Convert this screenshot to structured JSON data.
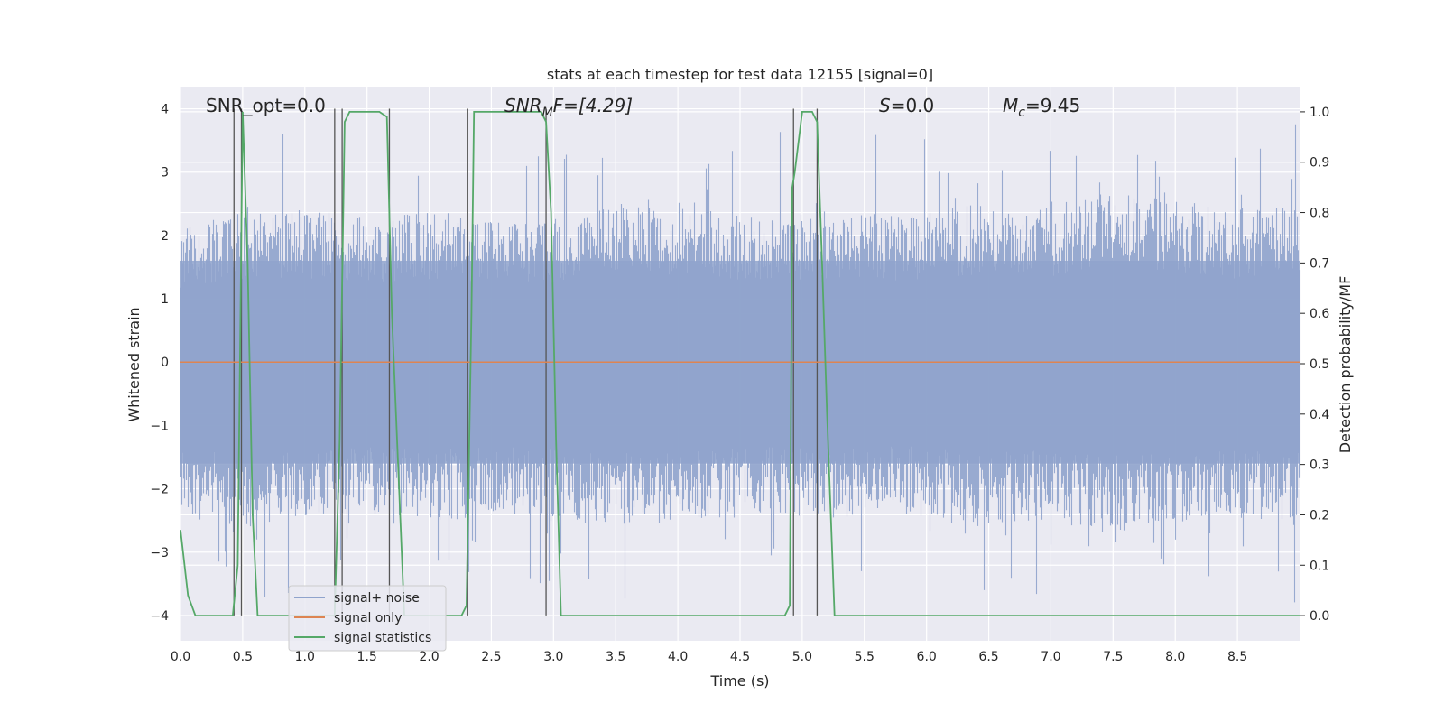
{
  "chart_data": {
    "type": "line",
    "title": "stats at each timestep for test data 12155 [signal=0]",
    "xlabel": "Time (s)",
    "ylabel": "Whitened strain",
    "ylabel_right": "Detection probability/MF",
    "xlim": [
      0,
      9
    ],
    "ylim": [
      -4.4,
      4.35
    ],
    "ylim_right": [
      -0.05,
      1.05
    ],
    "x_ticks": [
      0.0,
      0.5,
      1.0,
      1.5,
      2.0,
      2.5,
      3.0,
      3.5,
      4.0,
      4.5,
      5.0,
      5.5,
      6.0,
      6.5,
      7.0,
      7.5,
      8.0,
      8.5
    ],
    "x_tick_labels": [
      "0.0",
      "0.5",
      "1.0",
      "1.5",
      "2.0",
      "2.5",
      "3.0",
      "3.5",
      "4.0",
      "4.5",
      "5.0",
      "5.5",
      "6.0",
      "6.5",
      "7.0",
      "7.5",
      "8.0",
      "8.5"
    ],
    "y_ticks": [
      4,
      3,
      2,
      1,
      0,
      -1,
      -2,
      -3,
      -4
    ],
    "y_tick_labels": [
      "4",
      "3",
      "2",
      "1",
      "0",
      "−1",
      "−2",
      "−3",
      "−4"
    ],
    "y_right_ticks": [
      1.0,
      0.9,
      0.8,
      0.7,
      0.6,
      0.5,
      0.4,
      0.3,
      0.2,
      0.1,
      0.0
    ],
    "y_right_tick_labels": [
      "1.0",
      "0.9",
      "0.8",
      "0.7",
      "0.6",
      "0.5",
      "0.4",
      "0.3",
      "0.2",
      "0.1",
      "0.0"
    ],
    "grid": true,
    "legend_position": "lower-left",
    "annotations": {
      "snr_opt": "SNR_opt=0.0",
      "snr_mf_main": "SNR",
      "snr_mf_sub": "M",
      "snr_mf_rest": "F=[4.29]",
      "s_italic": "S",
      "s_rest": "=0.0",
      "mc_main": "M",
      "mc_sub": "c",
      "mc_rest": "=9.45"
    },
    "series": [
      {
        "name": "signal+ noise",
        "color": "#8fa3cc",
        "kind": "noise",
        "envelope_pos": [
          2.1,
          2.4,
          2.4,
          2.3,
          2.4,
          2.2,
          2.3,
          2.6,
          2.4,
          2.3,
          2.4,
          2.3,
          2.5,
          2.4,
          2.7,
          2.6,
          2.4,
          2.5
        ],
        "envelope_neg": [
          -2.5,
          -2.6,
          -2.5,
          -2.4,
          -2.5,
          -2.4,
          -2.5,
          -2.6,
          -2.5,
          -2.4,
          -2.5,
          -2.4,
          -2.6,
          -2.5,
          -2.7,
          -2.6,
          -2.5,
          -2.6
        ],
        "spike_max": 3.9,
        "spike_min": -4.0
      },
      {
        "name": "signal only",
        "color": "#dd8452",
        "x": [
          0,
          9
        ],
        "y": [
          0,
          0
        ]
      },
      {
        "name": "signal statistics",
        "color": "#55a868",
        "axis": "right",
        "x": [
          0.0,
          0.06,
          0.12,
          0.2,
          0.3,
          0.36,
          0.42,
          0.46,
          0.5,
          0.54,
          0.58,
          0.62,
          0.7,
          0.8,
          0.9,
          1.0,
          1.1,
          1.2,
          1.24,
          1.28,
          1.32,
          1.36,
          1.4,
          1.6,
          1.66,
          1.7,
          1.8,
          1.9,
          2.0,
          2.1,
          2.2,
          2.26,
          2.3,
          2.34,
          2.36,
          2.4,
          2.6,
          2.8,
          2.9,
          2.94,
          2.98,
          3.02,
          3.06,
          3.1,
          3.5,
          4.0,
          4.5,
          4.7,
          4.82,
          4.86,
          4.9,
          4.92,
          4.94,
          5.0,
          5.08,
          5.12,
          5.16,
          5.2,
          5.26,
          5.3,
          6.0,
          7.0,
          8.0,
          9.0
        ],
        "y": [
          0.17,
          0.04,
          0.0,
          0.0,
          0.0,
          0.0,
          0.0,
          0.1,
          1.0,
          0.7,
          0.2,
          0.0,
          0.0,
          0.0,
          0.0,
          0.0,
          0.0,
          0.0,
          0.0,
          0.35,
          0.98,
          1.0,
          1.0,
          1.0,
          0.99,
          0.6,
          0.0,
          0.0,
          0.0,
          0.0,
          0.0,
          0.0,
          0.02,
          0.6,
          1.0,
          1.0,
          1.0,
          1.0,
          1.0,
          0.98,
          0.8,
          0.35,
          0.0,
          0.0,
          0.0,
          0.0,
          0.0,
          0.0,
          0.0,
          0.0,
          0.02,
          0.85,
          0.88,
          1.0,
          1.0,
          0.98,
          0.7,
          0.4,
          0.0,
          0.0,
          0.0,
          0.0,
          0.0,
          0.0
        ]
      }
    ],
    "vertical_markers": [
      0.43,
      0.49,
      1.24,
      1.3,
      1.68,
      2.31,
      2.94,
      4.93,
      5.12
    ]
  }
}
